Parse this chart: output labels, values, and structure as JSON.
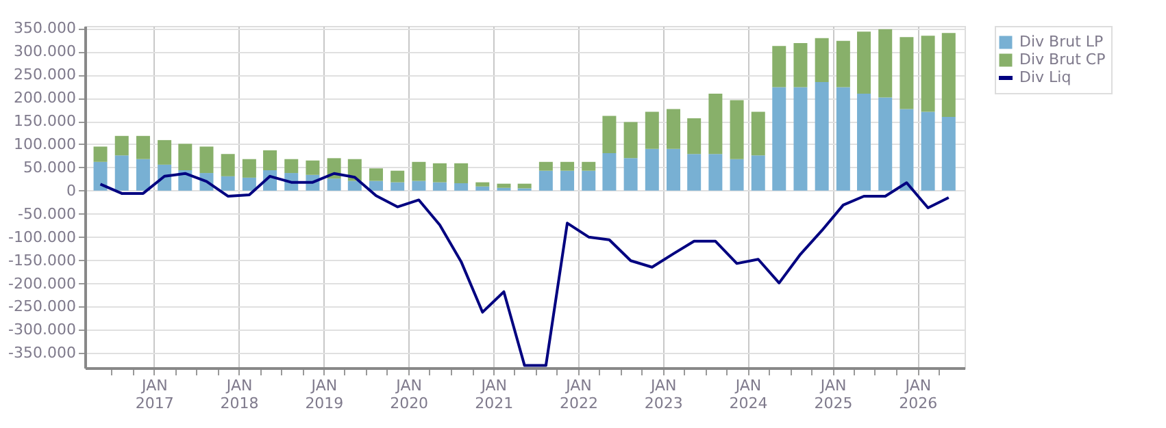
{
  "chart_data": {
    "type": "bar",
    "stacked": true,
    "x": [
      "2016-05-15",
      "2016-08-15",
      "2016-11-15",
      "2017-02-15",
      "2017-05-15",
      "2017-08-15",
      "2017-11-15",
      "2018-02-15",
      "2018-05-15",
      "2018-08-15",
      "2018-11-15",
      "2019-02-15",
      "2019-05-15",
      "2019-08-15",
      "2019-11-15",
      "2020-02-15",
      "2020-05-15",
      "2020-08-15",
      "2020-11-15",
      "2021-02-15",
      "2021-05-15",
      "2021-08-15",
      "2021-11-15",
      "2022-02-15",
      "2022-05-15",
      "2022-08-15",
      "2022-11-15",
      "2023-02-15",
      "2023-05-15",
      "2023-08-15",
      "2023-11-15",
      "2024-02-15",
      "2024-05-15",
      "2024-08-15",
      "2024-11-15",
      "2025-02-15",
      "2025-05-15",
      "2025-08-15",
      "2025-11-15",
      "2026-02-15",
      "2026-05-15"
    ],
    "series": [
      {
        "name": "Div Brut LP",
        "color": "#78b0d3",
        "values": [
          62000,
          76000,
          68000,
          56000,
          44000,
          38000,
          31000,
          28000,
          44000,
          38000,
          34000,
          26000,
          21000,
          21000,
          18000,
          21000,
          18000,
          16000,
          9000,
          6000,
          5000,
          43000,
          43000,
          43000,
          81000,
          70000,
          90000,
          90000,
          79000,
          79000,
          68000,
          76000,
          223000,
          223000,
          234000,
          223000,
          209000,
          201000,
          176000,
          170000,
          159000
        ]
      },
      {
        "name": "Div Brut CP",
        "color": "#88b06a",
        "values": [
          33000,
          42000,
          50000,
          53000,
          57000,
          57000,
          48000,
          40000,
          43000,
          30000,
          31000,
          44000,
          47000,
          27000,
          25000,
          41000,
          41000,
          43000,
          9000,
          9000,
          10000,
          19000,
          19000,
          19000,
          80000,
          78000,
          80000,
          86000,
          77000,
          130000,
          127000,
          94000,
          89000,
          95000,
          95000,
          100000,
          134000,
          147000,
          155000,
          164000,
          181000
        ]
      },
      {
        "name": "Div Liq",
        "type": "line",
        "color": "#000080",
        "values": [
          14000,
          -6000,
          -6000,
          31000,
          37000,
          20000,
          -12000,
          -9000,
          31000,
          18000,
          18000,
          37000,
          29000,
          -11000,
          -35000,
          -20000,
          -74000,
          -153000,
          -262000,
          -218000,
          -377000,
          -377000,
          -70000,
          -100000,
          -106000,
          -151000,
          -165000,
          -136000,
          -109000,
          -109000,
          -157000,
          -148000,
          -199000,
          -137000,
          -86000,
          -31000,
          -12000,
          -12000,
          17000,
          -37000,
          -15000
        ]
      }
    ],
    "xlim": [
      "2016-04-08",
      "2026-06-23"
    ],
    "xticks": [
      {
        "value": "2016-07-01",
        "label": null
      },
      {
        "value": "2016-10-01",
        "label": null
      },
      {
        "value": "2017-01-01",
        "label": "JAN 2017"
      },
      {
        "value": "2017-04-01",
        "label": null
      },
      {
        "value": "2017-07-01",
        "label": null
      },
      {
        "value": "2017-10-01",
        "label": null
      },
      {
        "value": "2018-01-01",
        "label": "JAN 2018"
      },
      {
        "value": "2018-04-01",
        "label": null
      },
      {
        "value": "2018-07-01",
        "label": null
      },
      {
        "value": "2018-10-01",
        "label": null
      },
      {
        "value": "2019-01-01",
        "label": "JAN 2019"
      },
      {
        "value": "2019-04-01",
        "label": null
      },
      {
        "value": "2019-07-01",
        "label": null
      },
      {
        "value": "2019-10-01",
        "label": null
      },
      {
        "value": "2020-01-01",
        "label": "JAN 2020"
      },
      {
        "value": "2020-04-01",
        "label": null
      },
      {
        "value": "2020-07-01",
        "label": null
      },
      {
        "value": "2020-10-01",
        "label": null
      },
      {
        "value": "2021-01-01",
        "label": "JAN 2021"
      },
      {
        "value": "2021-04-01",
        "label": null
      },
      {
        "value": "2021-07-01",
        "label": null
      },
      {
        "value": "2021-10-01",
        "label": null
      },
      {
        "value": "2022-01-01",
        "label": "JAN 2022"
      },
      {
        "value": "2022-04-01",
        "label": null
      },
      {
        "value": "2022-07-01",
        "label": null
      },
      {
        "value": "2022-10-01",
        "label": null
      },
      {
        "value": "2023-01-01",
        "label": "JAN 2023"
      },
      {
        "value": "2023-04-01",
        "label": null
      },
      {
        "value": "2023-07-01",
        "label": null
      },
      {
        "value": "2023-10-01",
        "label": null
      },
      {
        "value": "2024-01-01",
        "label": "JAN 2024"
      },
      {
        "value": "2024-04-01",
        "label": null
      },
      {
        "value": "2024-07-01",
        "label": null
      },
      {
        "value": "2024-10-01",
        "label": null
      },
      {
        "value": "2025-01-01",
        "label": "JAN 2025"
      },
      {
        "value": "2025-04-01",
        "label": null
      },
      {
        "value": "2025-07-01",
        "label": null
      },
      {
        "value": "2025-10-01",
        "label": null
      },
      {
        "value": "2026-01-01",
        "label": "JAN 2026"
      },
      {
        "value": "2026-04-01",
        "label": null
      }
    ],
    "ylim": [
      -382000,
      355000
    ],
    "yticks": [
      {
        "value": -350000,
        "label": "-350.000"
      },
      {
        "value": -300000,
        "label": "-300.000"
      },
      {
        "value": -250000,
        "label": "-250.000"
      },
      {
        "value": -200000,
        "label": "-200.000"
      },
      {
        "value": -150000,
        "label": "-150.000"
      },
      {
        "value": -100000,
        "label": "-100.000"
      },
      {
        "value": -50000,
        "label": "-50.000"
      },
      {
        "value": 0,
        "label": "0"
      },
      {
        "value": 50000,
        "label": "50.000"
      },
      {
        "value": 100000,
        "label": "100.000"
      },
      {
        "value": 150000,
        "label": "150.000"
      },
      {
        "value": 200000,
        "label": "200.000"
      },
      {
        "value": 250000,
        "label": "250.000"
      },
      {
        "value": 300000,
        "label": "300.000"
      },
      {
        "value": 350000,
        "label": "350.000"
      }
    ],
    "grid": true,
    "legend": "top right",
    "marker": "none",
    "line_style": "solid"
  }
}
